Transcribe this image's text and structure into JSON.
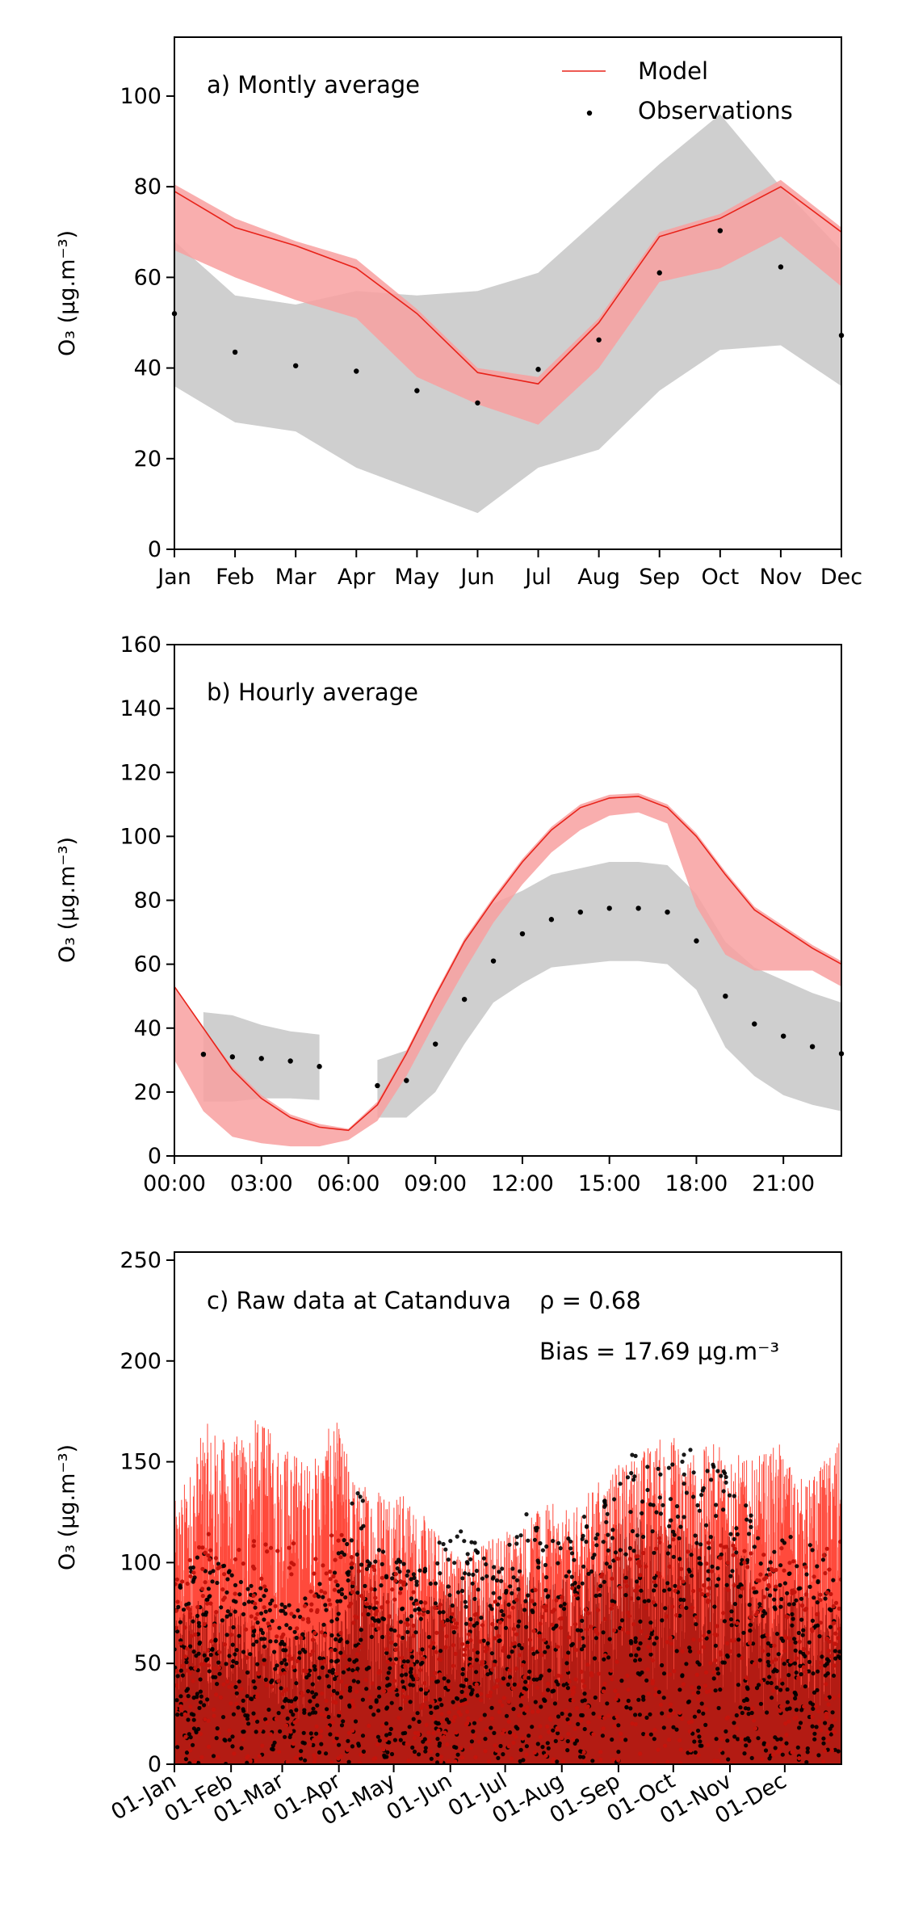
{
  "chart_data": [
    {
      "type": "line",
      "panel_label": "a) Montly average",
      "ylabel": "O₃ (μg.m⁻³)",
      "ylim": [
        0,
        113
      ],
      "yticks": [
        0,
        20,
        40,
        60,
        80,
        100
      ],
      "categories": [
        "Jan",
        "Feb",
        "Mar",
        "Apr",
        "May",
        "Jun",
        "Jul",
        "Aug",
        "Sep",
        "Oct",
        "Nov",
        "Dec"
      ],
      "legend": {
        "position": "top-right",
        "entries": [
          "Model",
          "Observations"
        ]
      },
      "series": [
        {
          "name": "Model",
          "kind": "line",
          "color": "#e8231a",
          "values": [
            79,
            71,
            67,
            62,
            52,
            39,
            36.5,
            50,
            69,
            73,
            80,
            70
          ]
        },
        {
          "name": "Model spread",
          "kind": "band",
          "color": "#f8a0a0",
          "lower": [
            66,
            60,
            55,
            51,
            38,
            32,
            27.5,
            40,
            59,
            62,
            69,
            58
          ],
          "upper": [
            80.5,
            73,
            68,
            64,
            53,
            40,
            38,
            51,
            70,
            74,
            81.5,
            71
          ]
        },
        {
          "name": "Observations",
          "kind": "points",
          "color": "#000000",
          "values": [
            52,
            43.5,
            40.5,
            39.3,
            35,
            32.3,
            39.7,
            46.2,
            61,
            70.3,
            62.3,
            47.2
          ]
        },
        {
          "name": "Observations spread",
          "kind": "band",
          "color": "#cfcfcf",
          "lower": [
            36,
            28,
            26,
            18,
            13,
            8,
            18,
            22,
            35,
            44,
            45,
            36
          ],
          "upper": [
            68,
            56,
            54,
            57,
            56,
            57,
            61,
            73,
            85,
            96,
            80,
            66
          ]
        }
      ]
    },
    {
      "type": "line",
      "panel_label": "b) Hourly average",
      "ylabel": "O₃ (μg.m⁻³)",
      "ylim": [
        0,
        160
      ],
      "yticks": [
        0,
        20,
        40,
        60,
        80,
        100,
        120,
        140,
        160
      ],
      "xlim": [
        0,
        23
      ],
      "xticks": [
        0,
        3,
        6,
        9,
        12,
        15,
        18,
        21
      ],
      "xtick_labels": [
        "00:00",
        "03:00",
        "06:00",
        "09:00",
        "12:00",
        "15:00",
        "18:00",
        "21:00"
      ],
      "x": [
        0,
        1,
        2,
        3,
        4,
        5,
        6,
        7,
        8,
        9,
        10,
        11,
        12,
        13,
        14,
        15,
        16,
        17,
        18,
        19,
        20,
        21,
        22,
        23
      ],
      "series": [
        {
          "name": "Model",
          "kind": "line",
          "color": "#e8231a",
          "values": [
            53,
            40,
            27,
            18,
            12,
            9,
            8,
            16,
            32,
            50,
            67,
            80,
            92,
            102,
            109,
            112,
            112.5,
            109,
            100,
            88,
            77,
            71,
            65,
            60
          ]
        },
        {
          "name": "Model spread",
          "kind": "band",
          "color": "#f8a0a0",
          "lower": [
            30,
            14,
            6,
            4,
            3,
            3,
            5,
            11,
            25,
            42,
            58,
            73,
            85,
            95,
            102,
            106.5,
            107.5,
            104,
            78,
            63,
            58,
            58,
            58,
            53
          ],
          "upper": [
            53,
            40,
            28,
            19,
            13,
            10,
            8.5,
            17,
            33,
            51,
            68,
            81,
            93,
            103,
            110,
            113,
            113.5,
            110,
            101,
            89,
            78,
            72,
            66,
            61
          ]
        },
        {
          "name": "Observations",
          "kind": "points",
          "color": "#000000",
          "values": [
            null,
            31.8,
            31,
            30.5,
            29.7,
            28,
            null,
            22,
            23.6,
            35,
            49,
            61,
            69.5,
            74,
            76.3,
            77.5,
            77.5,
            76.3,
            67.3,
            50,
            41.3,
            37.5,
            34.2,
            32
          ]
        },
        {
          "name": "Observations spread",
          "kind": "band",
          "color": "#cfcfcf",
          "lower": [
            null,
            17,
            17,
            18,
            18,
            17.5,
            null,
            12,
            12,
            20,
            35,
            48,
            54,
            59,
            60,
            61,
            61,
            60,
            52,
            34,
            25,
            19,
            16,
            14
          ],
          "upper": [
            null,
            45,
            44,
            41,
            39,
            38,
            null,
            30,
            33,
            49,
            68,
            79,
            83,
            88,
            90,
            92,
            92,
            91,
            82,
            67,
            59,
            55,
            51,
            48
          ]
        }
      ]
    },
    {
      "type": "line",
      "panel_label": "c) Raw data at Catanduva",
      "correlation_label": "ρ = 0.68",
      "bias_label": "Bias = 17.69 μg.m⁻³",
      "ylabel": "O₃ (μg.m⁻³)",
      "ylim": [
        0,
        254
      ],
      "yticks": [
        0,
        50,
        100,
        150,
        200,
        250
      ],
      "xtick_labels": [
        "01-Jan",
        "01-Feb",
        "01-Mar",
        "01-Apr",
        "01-May",
        "01-Jun",
        "01-Jul",
        "01-Aug",
        "01-Sep",
        "01-Oct",
        "01-Nov",
        "01-Dec"
      ],
      "xtick_days": [
        0,
        31,
        59,
        90,
        120,
        151,
        181,
        212,
        243,
        273,
        304,
        334
      ],
      "xlim_days": [
        0,
        365
      ],
      "series": [
        {
          "name": "Model",
          "kind": "hourly-spikes",
          "color": "#ff2a1a",
          "daily_peak": [
            [
              0,
              130
            ],
            [
              10,
              150
            ],
            [
              17,
              170
            ],
            [
              30,
              160
            ],
            [
              45,
              172
            ],
            [
              60,
              160
            ],
            [
              75,
              150
            ],
            [
              88,
              173
            ],
            [
              100,
              140
            ],
            [
              120,
              140
            ],
            [
              135,
              125
            ],
            [
              150,
              110
            ],
            [
              160,
              105
            ],
            [
              175,
              115
            ],
            [
              190,
              120
            ],
            [
              205,
              130
            ],
            [
              218,
              125
            ],
            [
              230,
              140
            ],
            [
              245,
              150
            ],
            [
              260,
              160
            ],
            [
              272,
              165
            ],
            [
              285,
              155
            ],
            [
              300,
              162
            ],
            [
              315,
              150
            ],
            [
              330,
              160
            ],
            [
              345,
              140
            ],
            [
              364,
              160
            ]
          ]
        },
        {
          "name": "Observations",
          "kind": "hourly-points",
          "color": "#000000",
          "daily_peak": [
            [
              0,
              90
            ],
            [
              15,
              105
            ],
            [
              30,
              100
            ],
            [
              45,
              90
            ],
            [
              60,
              80
            ],
            [
              75,
              85
            ],
            [
              88,
              100
            ],
            [
              100,
              140
            ],
            [
              115,
              110
            ],
            [
              130,
              95
            ],
            [
              145,
              110
            ],
            [
              160,
              120
            ],
            [
              175,
              100
            ],
            [
              192,
              125
            ],
            [
              205,
              110
            ],
            [
              220,
              120
            ],
            [
              232,
              130
            ],
            [
              245,
              155
            ],
            [
              258,
              155
            ],
            [
              268,
              150
            ],
            [
              282,
              160
            ],
            [
              298,
              150
            ],
            [
              312,
              130
            ],
            [
              325,
              110
            ],
            [
              340,
              115
            ],
            [
              364,
              100
            ]
          ]
        }
      ]
    }
  ]
}
